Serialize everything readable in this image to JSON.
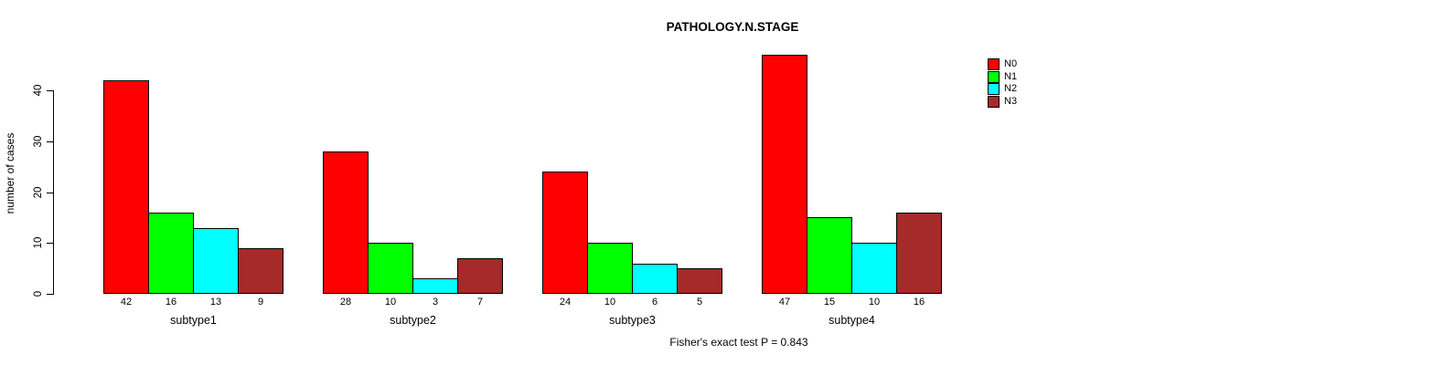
{
  "chart_data": {
    "type": "bar",
    "title": "PATHOLOGY.N.STAGE",
    "ylabel": "number of cases",
    "xlabel": "",
    "footer": "Fisher's exact test P = 0.843",
    "categories": [
      "subtype1",
      "subtype2",
      "subtype3",
      "subtype4"
    ],
    "series": [
      {
        "name": "N0",
        "color": "#FF0000",
        "values": [
          42,
          28,
          24,
          47
        ]
      },
      {
        "name": "N1",
        "color": "#00FF00",
        "values": [
          16,
          10,
          10,
          15
        ]
      },
      {
        "name": "N2",
        "color": "#00FFFF",
        "values": [
          13,
          3,
          6,
          10
        ]
      },
      {
        "name": "N3",
        "color": "#A52A2A",
        "values": [
          9,
          7,
          5,
          16
        ]
      }
    ],
    "yticks": [
      0,
      10,
      20,
      30,
      40
    ],
    "ylim": [
      0,
      47
    ],
    "grid": false,
    "bar_value_labels_shown": true,
    "legend_position": "top-right",
    "background_color": "#FFFFFF",
    "bar_border_color": "#000000",
    "text_color": "#000000"
  }
}
